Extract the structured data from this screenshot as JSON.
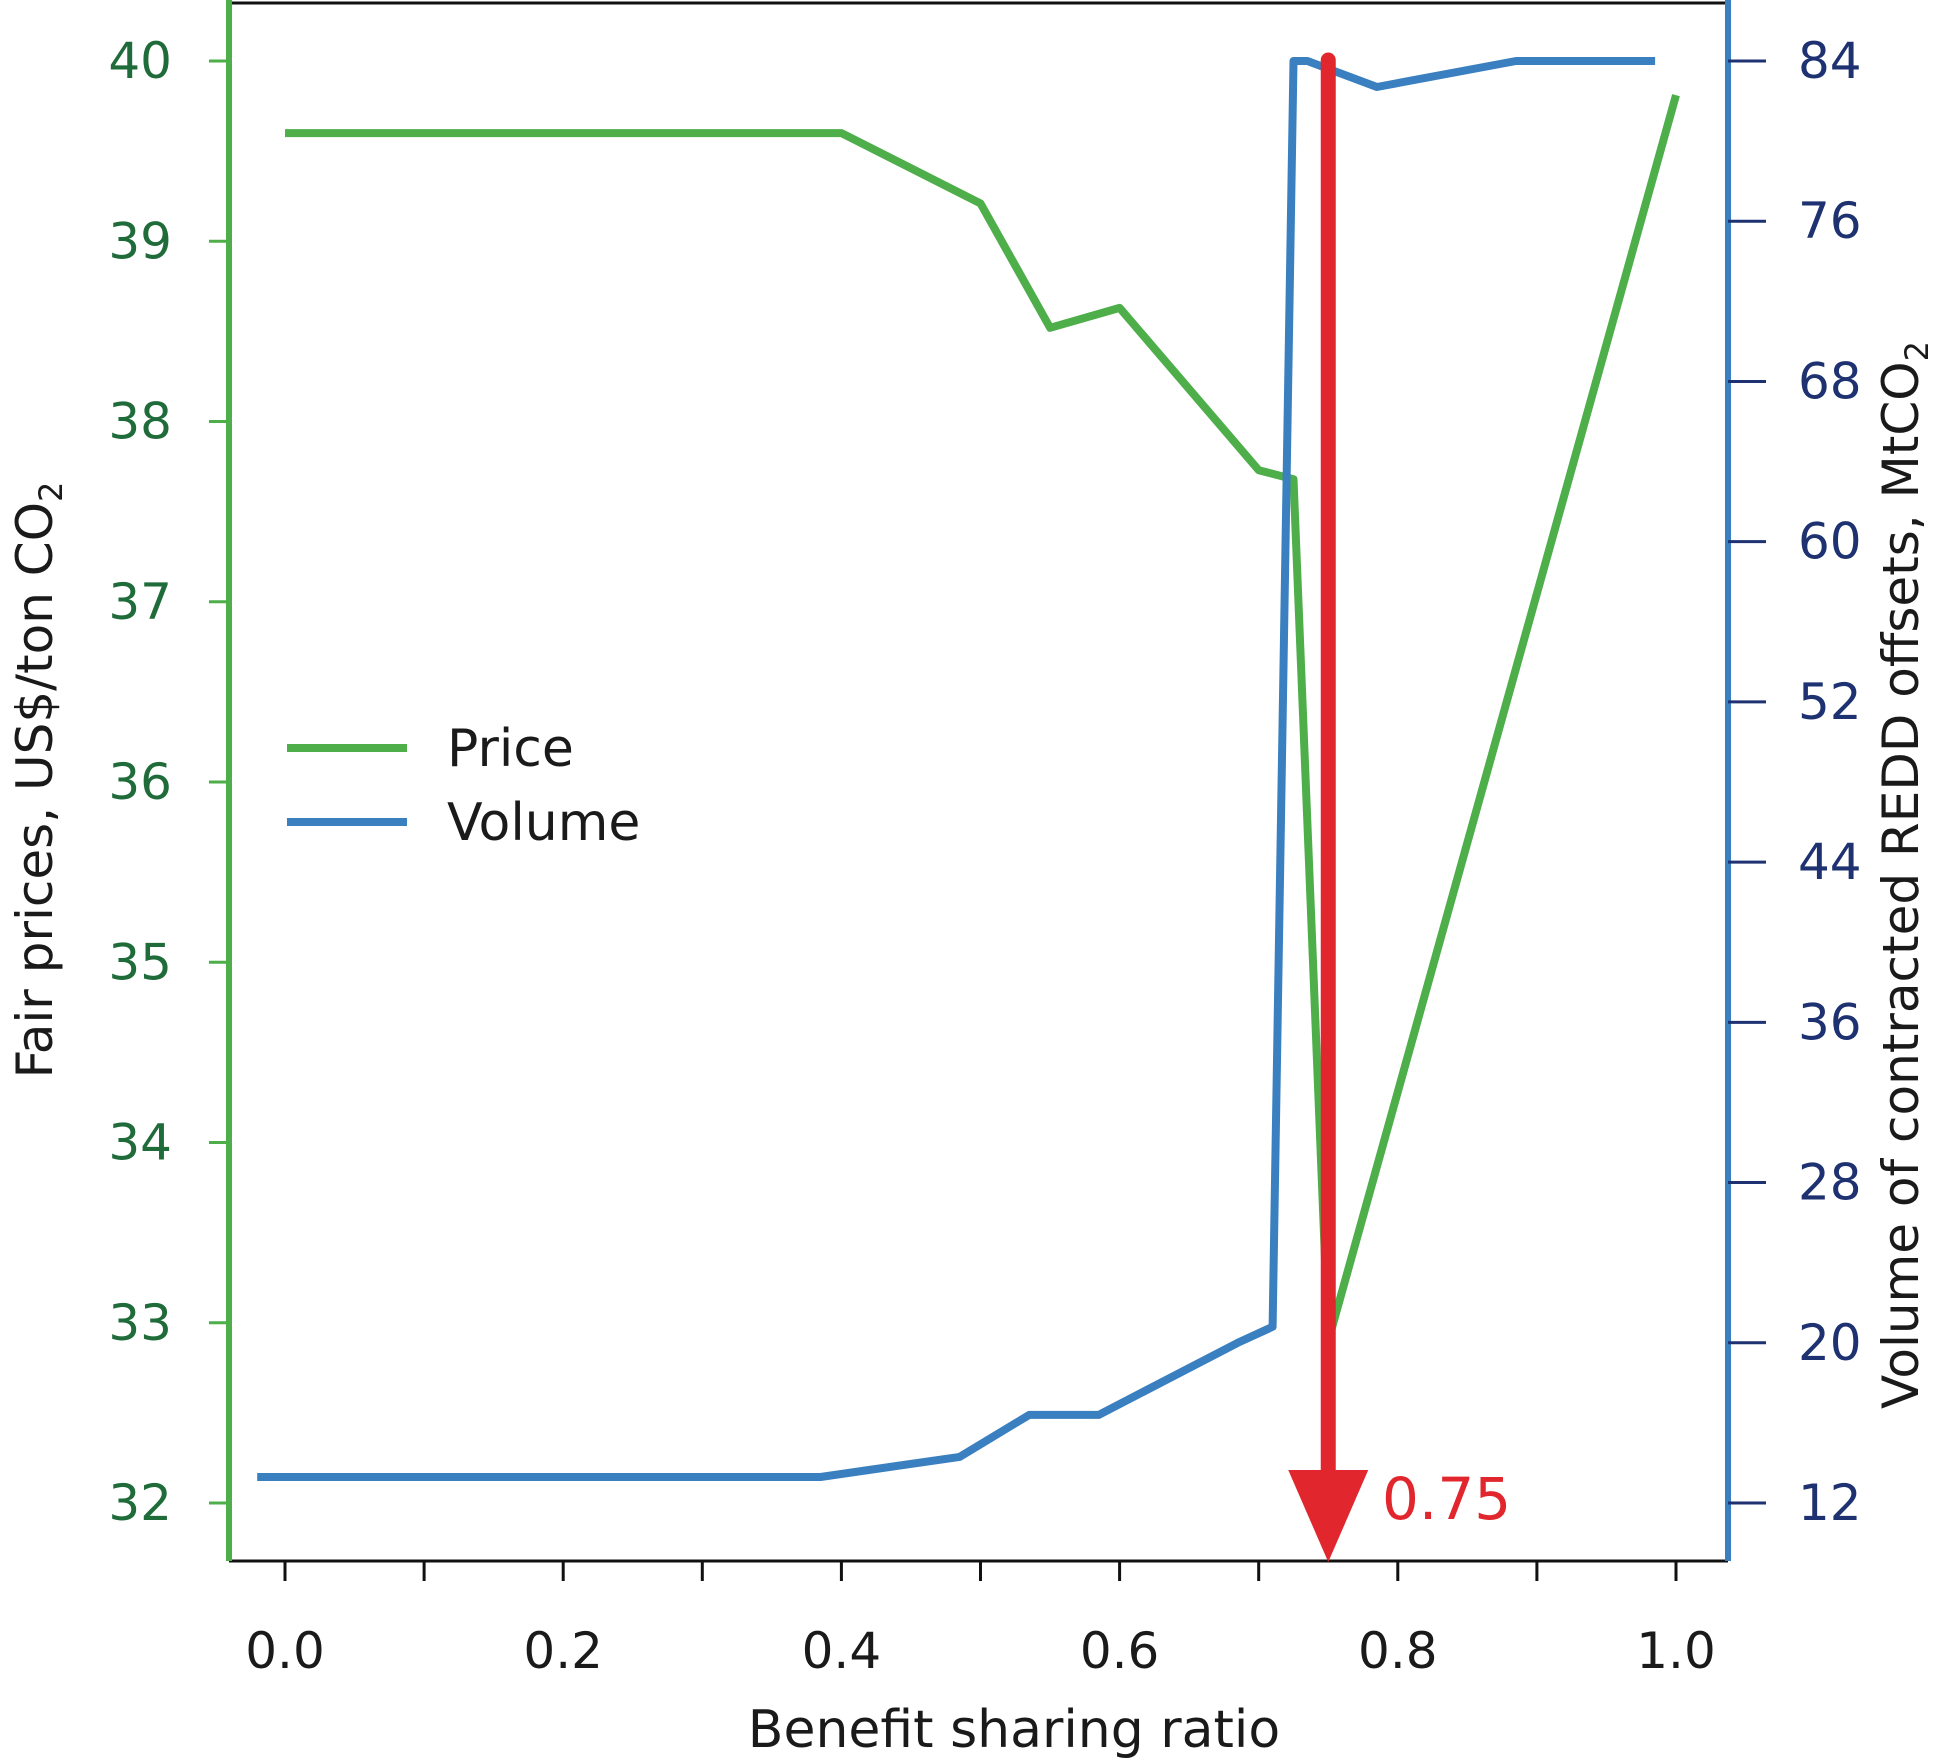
{
  "chart_data": {
    "type": "line",
    "xlabel": "Benefit sharing ratio",
    "ylabel_left": "Fair prices, US$/ton CO",
    "ylabel_left_sub": "2",
    "ylabel_right": "Volume of contracted REDD offsets, MtCO",
    "ylabel_right_sub": "2",
    "xlim": [
      -0.04,
      1.04
    ],
    "ylim_left": [
      31.7,
      40.3
    ],
    "ylim_right": [
      9.33,
      86.7
    ],
    "x_ticks": [
      0.0,
      0.1,
      0.2,
      0.3,
      0.4,
      0.5,
      0.6,
      0.7,
      0.8,
      0.9,
      1.0
    ],
    "x_tick_labels": [
      {
        "value": 0.0,
        "label": "0.0"
      },
      {
        "value": 0.2,
        "label": "0.2"
      },
      {
        "value": 0.4,
        "label": "0.4"
      },
      {
        "value": 0.6,
        "label": "0.6"
      },
      {
        "value": 0.8,
        "label": "0.8"
      },
      {
        "value": 1.0,
        "label": "1.0"
      }
    ],
    "y_left_ticks": [
      {
        "value": 32,
        "label": "32"
      },
      {
        "value": 33,
        "label": "33"
      },
      {
        "value": 34,
        "label": "34"
      },
      {
        "value": 35,
        "label": "35"
      },
      {
        "value": 36,
        "label": "36"
      },
      {
        "value": 37,
        "label": "37"
      },
      {
        "value": 38,
        "label": "38"
      },
      {
        "value": 39,
        "label": "39"
      },
      {
        "value": 40,
        "label": "40"
      }
    ],
    "y_right_ticks": [
      {
        "value": 12,
        "label": "12"
      },
      {
        "value": 20,
        "label": "20"
      },
      {
        "value": 28,
        "label": "28"
      },
      {
        "value": 36,
        "label": "36"
      },
      {
        "value": 44,
        "label": "44"
      },
      {
        "value": 52,
        "label": "52"
      },
      {
        "value": 60,
        "label": "60"
      },
      {
        "value": 68,
        "label": "68"
      },
      {
        "value": 76,
        "label": "76"
      },
      {
        "value": 84,
        "label": "84"
      }
    ],
    "series": [
      {
        "name": "Price",
        "axis": "left",
        "color": "#4eae4a",
        "points": [
          [
            0.0,
            39.6
          ],
          [
            0.1,
            39.6
          ],
          [
            0.2,
            39.6
          ],
          [
            0.3,
            39.6
          ],
          [
            0.4,
            39.6
          ],
          [
            0.5,
            39.21
          ],
          [
            0.55,
            38.52
          ],
          [
            0.6,
            38.63
          ],
          [
            0.7,
            37.73
          ],
          [
            0.725,
            37.68
          ],
          [
            0.75,
            32.9
          ],
          [
            1.0,
            39.81
          ]
        ]
      },
      {
        "name": "Volume",
        "axis": "right",
        "color": "#3a7fbf",
        "points": [
          [
            -0.02,
            13.3
          ],
          [
            0.1,
            13.3
          ],
          [
            0.2,
            13.3
          ],
          [
            0.3,
            13.3
          ],
          [
            0.385,
            13.3
          ],
          [
            0.485,
            14.3
          ],
          [
            0.535,
            16.4
          ],
          [
            0.585,
            16.4
          ],
          [
            0.685,
            20.0
          ],
          [
            0.71,
            20.8
          ],
          [
            0.725,
            84.0
          ],
          [
            0.735,
            84.0
          ],
          [
            0.785,
            82.7
          ],
          [
            0.885,
            84.0
          ],
          [
            0.985,
            84.0
          ]
        ]
      }
    ],
    "legend": {
      "placement": "middle-left",
      "entries": [
        "Price",
        "Volume"
      ]
    },
    "annotation": {
      "label": "0.75",
      "x": 0.75,
      "color": "#e1262d"
    },
    "colors": {
      "left_axis": "#4eae4a",
      "left_tick_text": "#1f6b3a",
      "right_axis": "#3a7fbf",
      "right_tick_text": "#1e3170",
      "annotation": "#e1262d",
      "text": "#1a1a1a"
    },
    "grid": false
  }
}
